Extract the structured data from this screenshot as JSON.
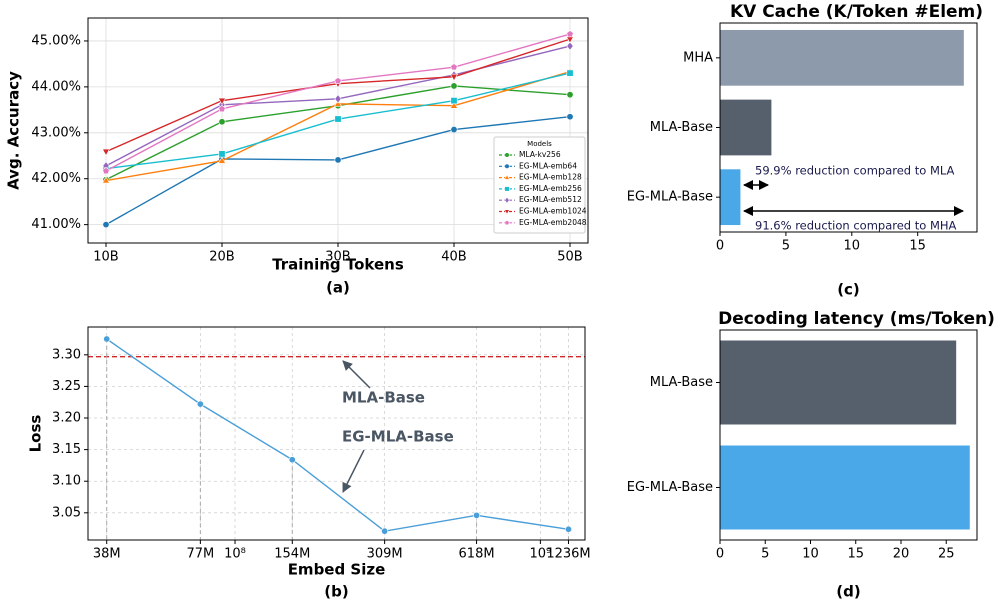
{
  "chart_data": [
    {
      "type": "line",
      "caption": "(a)",
      "xlabel": "Training Tokens",
      "ylabel": "Avg. Accuracy",
      "categories": [
        "10B",
        "20B",
        "30B",
        "40B",
        "50B"
      ],
      "ylim": [
        40.6,
        45.5
      ],
      "yticks": [
        {
          "value": 41,
          "label": "41.00%"
        },
        {
          "value": 42,
          "label": "42.00%"
        },
        {
          "value": 43,
          "label": "43.00%"
        },
        {
          "value": 44,
          "label": "44.00%"
        },
        {
          "value": 45,
          "label": "45.00%"
        }
      ],
      "grid": true,
      "legend": {
        "title": "Models",
        "loc": "lower right"
      },
      "series": [
        {
          "name": "MLA-kv256",
          "color": "#2ca02c",
          "marker": "circle",
          "values": [
            41.98,
            43.24,
            43.59,
            44.02,
            43.83
          ]
        },
        {
          "name": "EG-MLA-emb64",
          "color": "#1f77b4",
          "marker": "circle",
          "values": [
            41.0,
            42.43,
            42.41,
            43.07,
            43.35
          ]
        },
        {
          "name": "EG-MLA-emb128",
          "color": "#ff7f0e",
          "marker": "triangle-up",
          "values": [
            41.96,
            42.39,
            43.63,
            43.59,
            44.33
          ]
        },
        {
          "name": "EG-MLA-emb256",
          "color": "#17becf",
          "marker": "square",
          "values": [
            42.22,
            42.54,
            43.3,
            43.7,
            44.3
          ]
        },
        {
          "name": "EG-MLA-emb512",
          "color": "#9467bd",
          "marker": "diamond",
          "values": [
            42.28,
            43.61,
            43.74,
            44.26,
            44.89
          ]
        },
        {
          "name": "EG-MLA-emb1024",
          "color": "#d62728",
          "marker": "triangle-down",
          "values": [
            42.59,
            43.7,
            44.07,
            44.22,
            45.04
          ]
        },
        {
          "name": "EG-MLA-emb2048",
          "color": "#e377c2",
          "marker": "pentagon",
          "values": [
            42.17,
            43.52,
            44.13,
            44.43,
            45.15
          ]
        }
      ]
    },
    {
      "type": "line",
      "caption": "(b)",
      "xlabel": "Embed Size",
      "ylabel": "Loss",
      "x": [
        38000000,
        77000000,
        154000000,
        309000000,
        618000000,
        1236000000
      ],
      "values": [
        3.325,
        3.222,
        3.134,
        3.021,
        3.046,
        3.024
      ],
      "color": "#4a9fd8",
      "marker": "circle",
      "drop_lines": true,
      "xscale": "log",
      "xlim": [
        33000000,
        1400000000
      ],
      "xticks": [
        {
          "value": 38000000,
          "label": "38M"
        },
        {
          "value": 77000000,
          "label": "77M"
        },
        {
          "value": 100000000,
          "label": "10⁸"
        },
        {
          "value": 154000000,
          "label": "154M"
        },
        {
          "value": 309000000,
          "label": "309M"
        },
        {
          "value": 618000000,
          "label": "618M"
        },
        {
          "value": 1000000000,
          "label": "10⁹"
        },
        {
          "value": 1236000000,
          "label": "1236M"
        }
      ],
      "ylim": [
        3.007,
        3.344
      ],
      "yticks": [
        3.05,
        {
          "value": 3.1,
          "label": "3.10"
        },
        3.15,
        {
          "value": 3.2,
          "label": "3.20"
        },
        3.25,
        {
          "value": 3.3,
          "label": "3.30"
        }
      ],
      "grid": true,
      "hline": {
        "value": 3.297,
        "color": "#d62728"
      },
      "annotations": [
        "MLA-Base",
        "EG-MLA-Base"
      ]
    },
    {
      "type": "barh",
      "title": "KV Cache (K/Token #Elem)",
      "caption": "(c)",
      "categories": [
        "MHA",
        "MLA-Base",
        "EG-MLA-Base"
      ],
      "values": [
        18.5,
        3.9,
        1.55
      ],
      "colors": [
        "#8d9aab",
        "#56606c",
        "#4aa8e8"
      ],
      "xlim": [
        0,
        19.5
      ],
      "xticks": [
        0,
        5,
        10,
        15
      ],
      "annotations": [
        "59.9% reduction compared to MLA",
        "91.6% reduction compared to MHA"
      ]
    },
    {
      "type": "barh",
      "title": "Decoding latency (ms/Token)",
      "caption": "(d)",
      "categories": [
        "MLA-Base",
        "EG-MLA-Base"
      ],
      "values": [
        26.1,
        27.6
      ],
      "colors": [
        "#56606c",
        "#4aa8e8"
      ],
      "xlim": [
        0,
        28.4
      ],
      "xticks": [
        0,
        5,
        10,
        15,
        20,
        25
      ]
    }
  ]
}
